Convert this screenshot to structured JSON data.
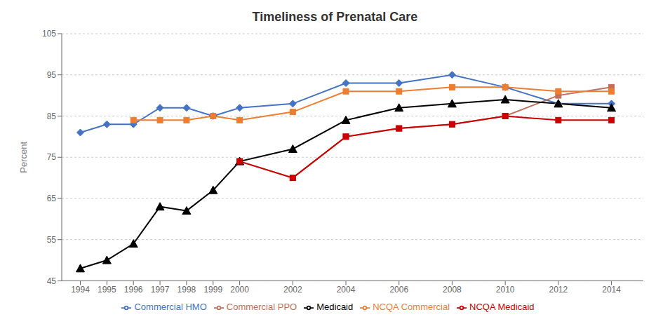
{
  "chart_data": {
    "type": "line",
    "title": "Timeliness of Prenatal Care",
    "y_label": "Percent",
    "x": [
      1994,
      1995,
      1996,
      1997,
      1998,
      1999,
      2000,
      2002,
      2004,
      2006,
      2008,
      2010,
      2012,
      2014
    ],
    "xlim": [
      1993.3,
      2015.2
    ],
    "xticks": [
      1994,
      1995,
      1996,
      1997,
      1998,
      1999,
      2000,
      2002,
      2004,
      2006,
      2008,
      2010,
      2012,
      2014
    ],
    "ylim": [
      45,
      105
    ],
    "yticks": [
      45,
      55,
      65,
      75,
      85,
      95,
      105
    ],
    "grid": true,
    "legend": "bottom",
    "series": [
      {
        "name": "Commercial HMO",
        "color": "#4472C4",
        "marker": "diamond",
        "values": [
          81,
          83,
          83,
          87,
          87,
          85,
          87,
          88,
          93,
          93,
          95,
          92,
          88,
          88
        ]
      },
      {
        "name": "Commercial PPO",
        "color": "#C0705A",
        "marker": "square",
        "values": [
          null,
          null,
          null,
          null,
          null,
          null,
          74,
          70,
          80,
          82,
          83,
          85,
          90,
          92
        ]
      },
      {
        "name": "Medicaid",
        "color": "#000000",
        "marker": "triangle",
        "values": [
          48,
          50,
          54,
          63,
          62,
          67,
          74,
          77,
          84,
          87,
          88,
          89,
          88,
          87
        ]
      },
      {
        "name": "NCQA Commercial",
        "color": "#ED7D31",
        "marker": "square",
        "values": [
          null,
          null,
          84,
          84,
          84,
          85,
          84,
          86,
          91,
          91,
          92,
          92,
          91,
          91
        ]
      },
      {
        "name": "NCQA Medicaid",
        "color": "#CC0000",
        "marker": "square",
        "values": [
          null,
          null,
          null,
          null,
          null,
          null,
          74,
          70,
          80,
          82,
          83,
          85,
          84,
          84
        ]
      }
    ]
  }
}
